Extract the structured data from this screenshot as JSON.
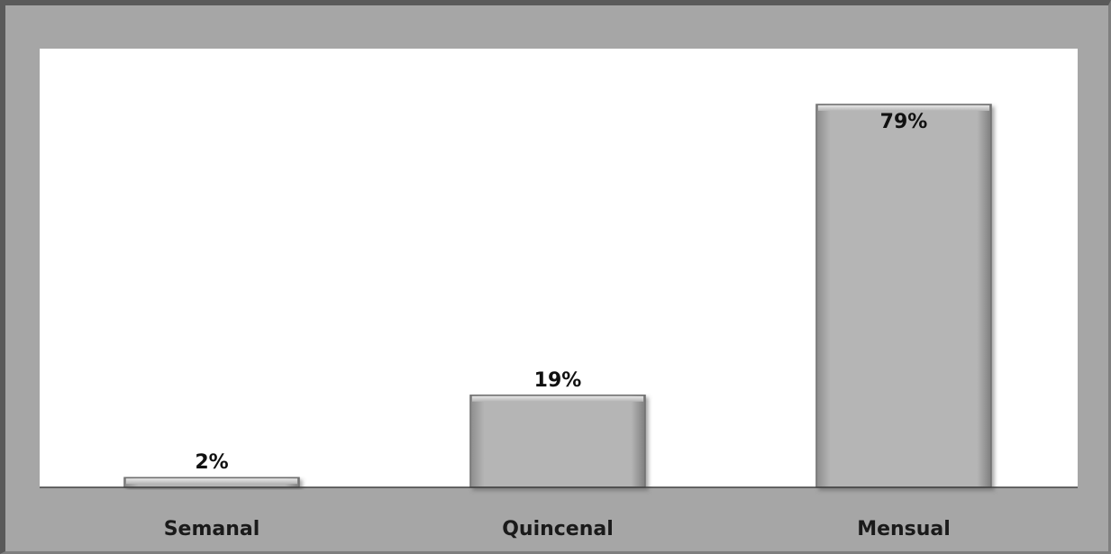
{
  "chart_data": {
    "type": "bar",
    "categories": [
      "Semanal",
      "Quincenal",
      "Mensual"
    ],
    "values": [
      2,
      19,
      79
    ],
    "data_labels": [
      "2%",
      "19%",
      "79%"
    ],
    "title": "",
    "xlabel": "",
    "ylabel": "",
    "ylim": [
      0,
      100
    ],
    "grid": false,
    "legend": "none",
    "colors": {
      "chart_area": "#a6a6a6",
      "plot_area": "#ffffff",
      "bar_fill": "#b3b3b3",
      "bar_edge": "#6f6f6f",
      "axis": "#404040",
      "text": "#1a1a1a"
    }
  }
}
